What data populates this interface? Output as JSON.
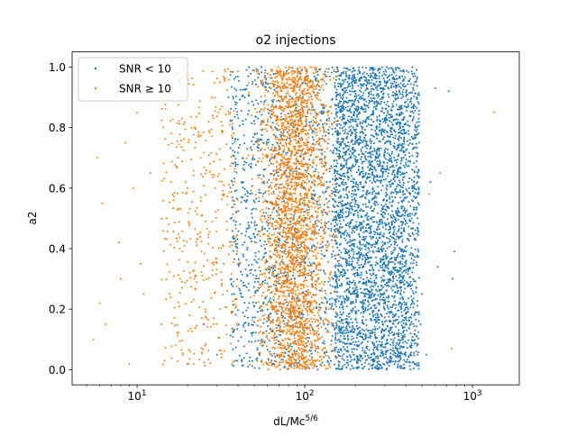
{
  "chart_data": {
    "type": "scatter",
    "title": "o2 injections",
    "xlabel_base": "dL/Mc",
    "xlabel_exponent": "5/6",
    "ylabel": "a2",
    "xscale": "log",
    "xlim": [
      4.1,
      1900
    ],
    "ylim": [
      -0.05,
      1.05
    ],
    "grid": false,
    "legend_placement": "top-left",
    "x_ticks": [
      {
        "value": 10,
        "base": "10",
        "exp": "1"
      },
      {
        "value": 100,
        "base": "10",
        "exp": "2"
      },
      {
        "value": 1000,
        "base": "10",
        "exp": "3"
      }
    ],
    "y_ticks": [
      {
        "value": 0.0,
        "label": "0.0"
      },
      {
        "value": 0.2,
        "label": "0.2"
      },
      {
        "value": 0.4,
        "label": "0.4"
      },
      {
        "value": 0.6,
        "label": "0.6"
      },
      {
        "value": 0.8,
        "label": "0.8"
      },
      {
        "value": 1.0,
        "label": "1.0"
      }
    ],
    "series": [
      {
        "name": "SNR < 10",
        "color": "#1f77b4",
        "dense_x_range": [
          150,
          400
        ],
        "y_range": [
          0.0,
          1.0
        ],
        "points": [
          [
            45,
            0.99
          ],
          [
            55,
            0.95
          ],
          [
            60,
            0.82
          ],
          [
            65,
            0.7
          ],
          [
            70,
            0.5
          ],
          [
            75,
            0.35
          ],
          [
            80,
            0.2
          ],
          [
            85,
            0.05
          ],
          [
            90,
            0.9
          ],
          [
            100,
            0.6
          ],
          [
            110,
            0.45
          ],
          [
            120,
            0.3
          ],
          [
            130,
            0.15
          ],
          [
            140,
            0.02
          ],
          [
            38,
            0.25
          ],
          [
            42,
            0.62
          ],
          [
            48,
            0.12
          ],
          [
            52,
            0.78
          ],
          [
            58,
            0.4
          ],
          [
            35,
            0.9
          ],
          [
            455,
            0.97
          ],
          [
            460,
            0.8
          ],
          [
            470,
            0.62
          ],
          [
            465,
            0.45
          ],
          [
            480,
            0.75
          ],
          [
            490,
            0.15
          ],
          [
            500,
            0.25
          ],
          [
            530,
            0.05
          ],
          [
            560,
            0.62
          ],
          [
            600,
            0.93
          ],
          [
            620,
            0.34
          ],
          [
            720,
            0.92
          ],
          [
            760,
            0.3
          ],
          [
            780,
            0.39
          ],
          [
            25,
            0.15
          ],
          [
            30,
            0.05
          ],
          [
            20,
            0.02
          ]
        ]
      },
      {
        "name": "SNR ≥ 10",
        "color": "#ff7f0e",
        "dense_x_range": [
          50,
          150
        ],
        "y_range": [
          0.0,
          1.0
        ],
        "points": [
          [
            5.5,
            0.1
          ],
          [
            5.8,
            0.7
          ],
          [
            6.0,
            0.22
          ],
          [
            6.2,
            0.55
          ],
          [
            6.5,
            0.15
          ],
          [
            7.5,
            0.9
          ],
          [
            7.8,
            0.42
          ],
          [
            8.0,
            0.3
          ],
          [
            8.5,
            0.75
          ],
          [
            9.0,
            0.02
          ],
          [
            9.5,
            0.6
          ],
          [
            10.0,
            0.85
          ],
          [
            10.5,
            0.35
          ],
          [
            11.0,
            0.25
          ],
          [
            12.0,
            0.65
          ],
          [
            13.0,
            0.95
          ],
          [
            14.0,
            0.15
          ],
          [
            15.0,
            0.5
          ],
          [
            16.0,
            0.78
          ],
          [
            17.0,
            0.08
          ],
          [
            18.0,
            0.4
          ],
          [
            19.0,
            0.9
          ],
          [
            20.0,
            0.6
          ],
          [
            22.0,
            0.3
          ],
          [
            24.0,
            0.7
          ],
          [
            1350,
            0.85
          ],
          [
            750,
            0.07
          ],
          [
            640,
            0.65
          ],
          [
            550,
            0.58
          ]
        ]
      }
    ]
  }
}
